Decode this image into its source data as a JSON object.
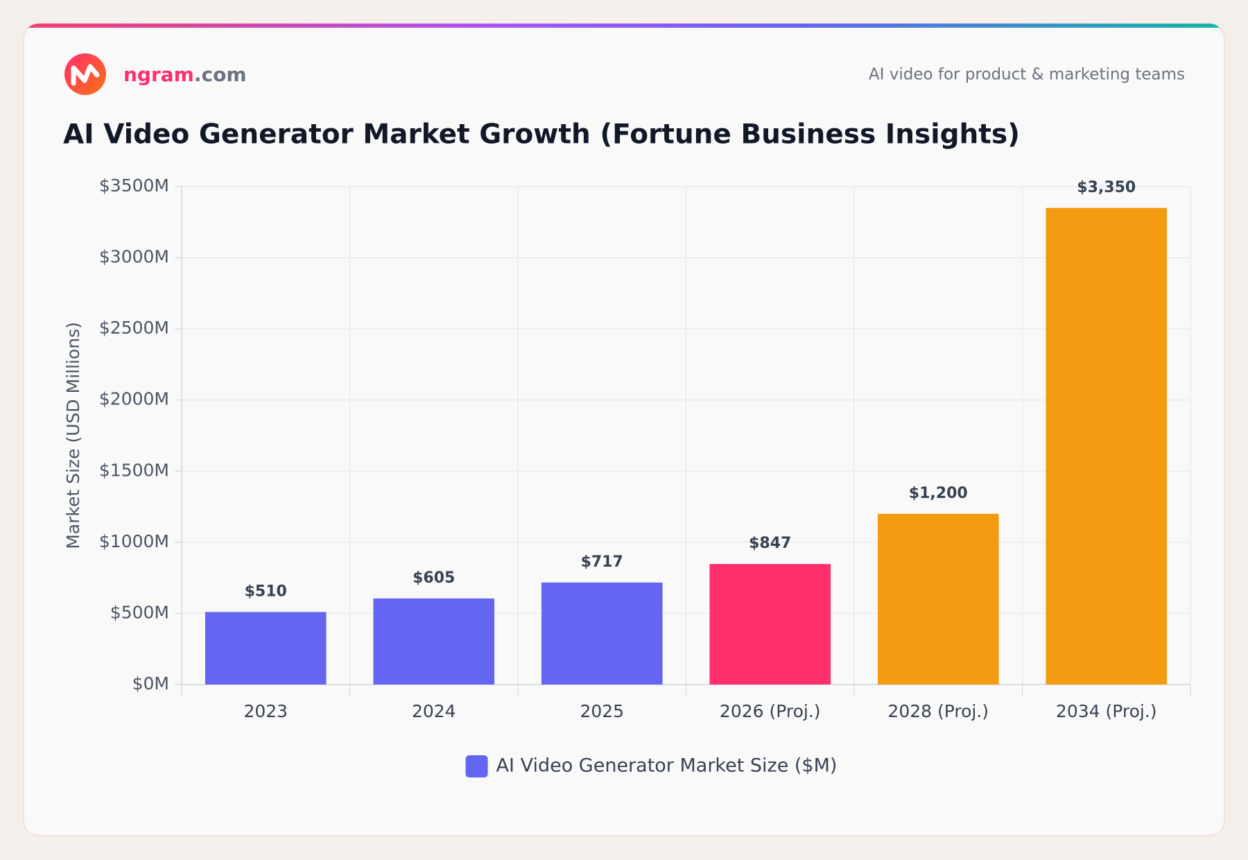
{
  "header": {
    "brand_name": "ngram",
    "brand_suffix": ".com",
    "tagline": "AI video for product & marketing teams"
  },
  "chart_data": {
    "type": "bar",
    "title": "AI Video Generator Market Growth (Fortune Business Insights)",
    "y_label": "Market Size (USD Millions)",
    "categories": [
      "2023",
      "2024",
      "2025",
      "2026 (Proj.)",
      "2028 (Proj.)",
      "2034 (Proj.)"
    ],
    "series": [
      {
        "name": "AI Video Generator Market Size ($M)",
        "color": "#6366f1",
        "values": [
          510,
          605,
          717,
          847,
          1200,
          3350
        ],
        "value_labels": [
          "$510",
          "$605",
          "$717",
          "$847",
          "$1,200",
          "$3,350"
        ],
        "colors": [
          "#6366f1",
          "#6366f1",
          "#6366f1",
          "#ff2e6c",
          "#f39c11",
          "#f39c11"
        ]
      }
    ],
    "ylim": [
      0,
      3500
    ],
    "yticks": [
      {
        "value": 0,
        "label": "$0M"
      },
      {
        "value": 500,
        "label": "$500M"
      },
      {
        "value": 1000,
        "label": "$1000M"
      },
      {
        "value": 1500,
        "label": "$1500M"
      },
      {
        "value": 2000,
        "label": "$2000M"
      },
      {
        "value": 2500,
        "label": "$2500M"
      },
      {
        "value": 3000,
        "label": "$3000M"
      },
      {
        "value": 3500,
        "label": "$3500M"
      }
    ],
    "grid": true,
    "legend": "bottom"
  }
}
